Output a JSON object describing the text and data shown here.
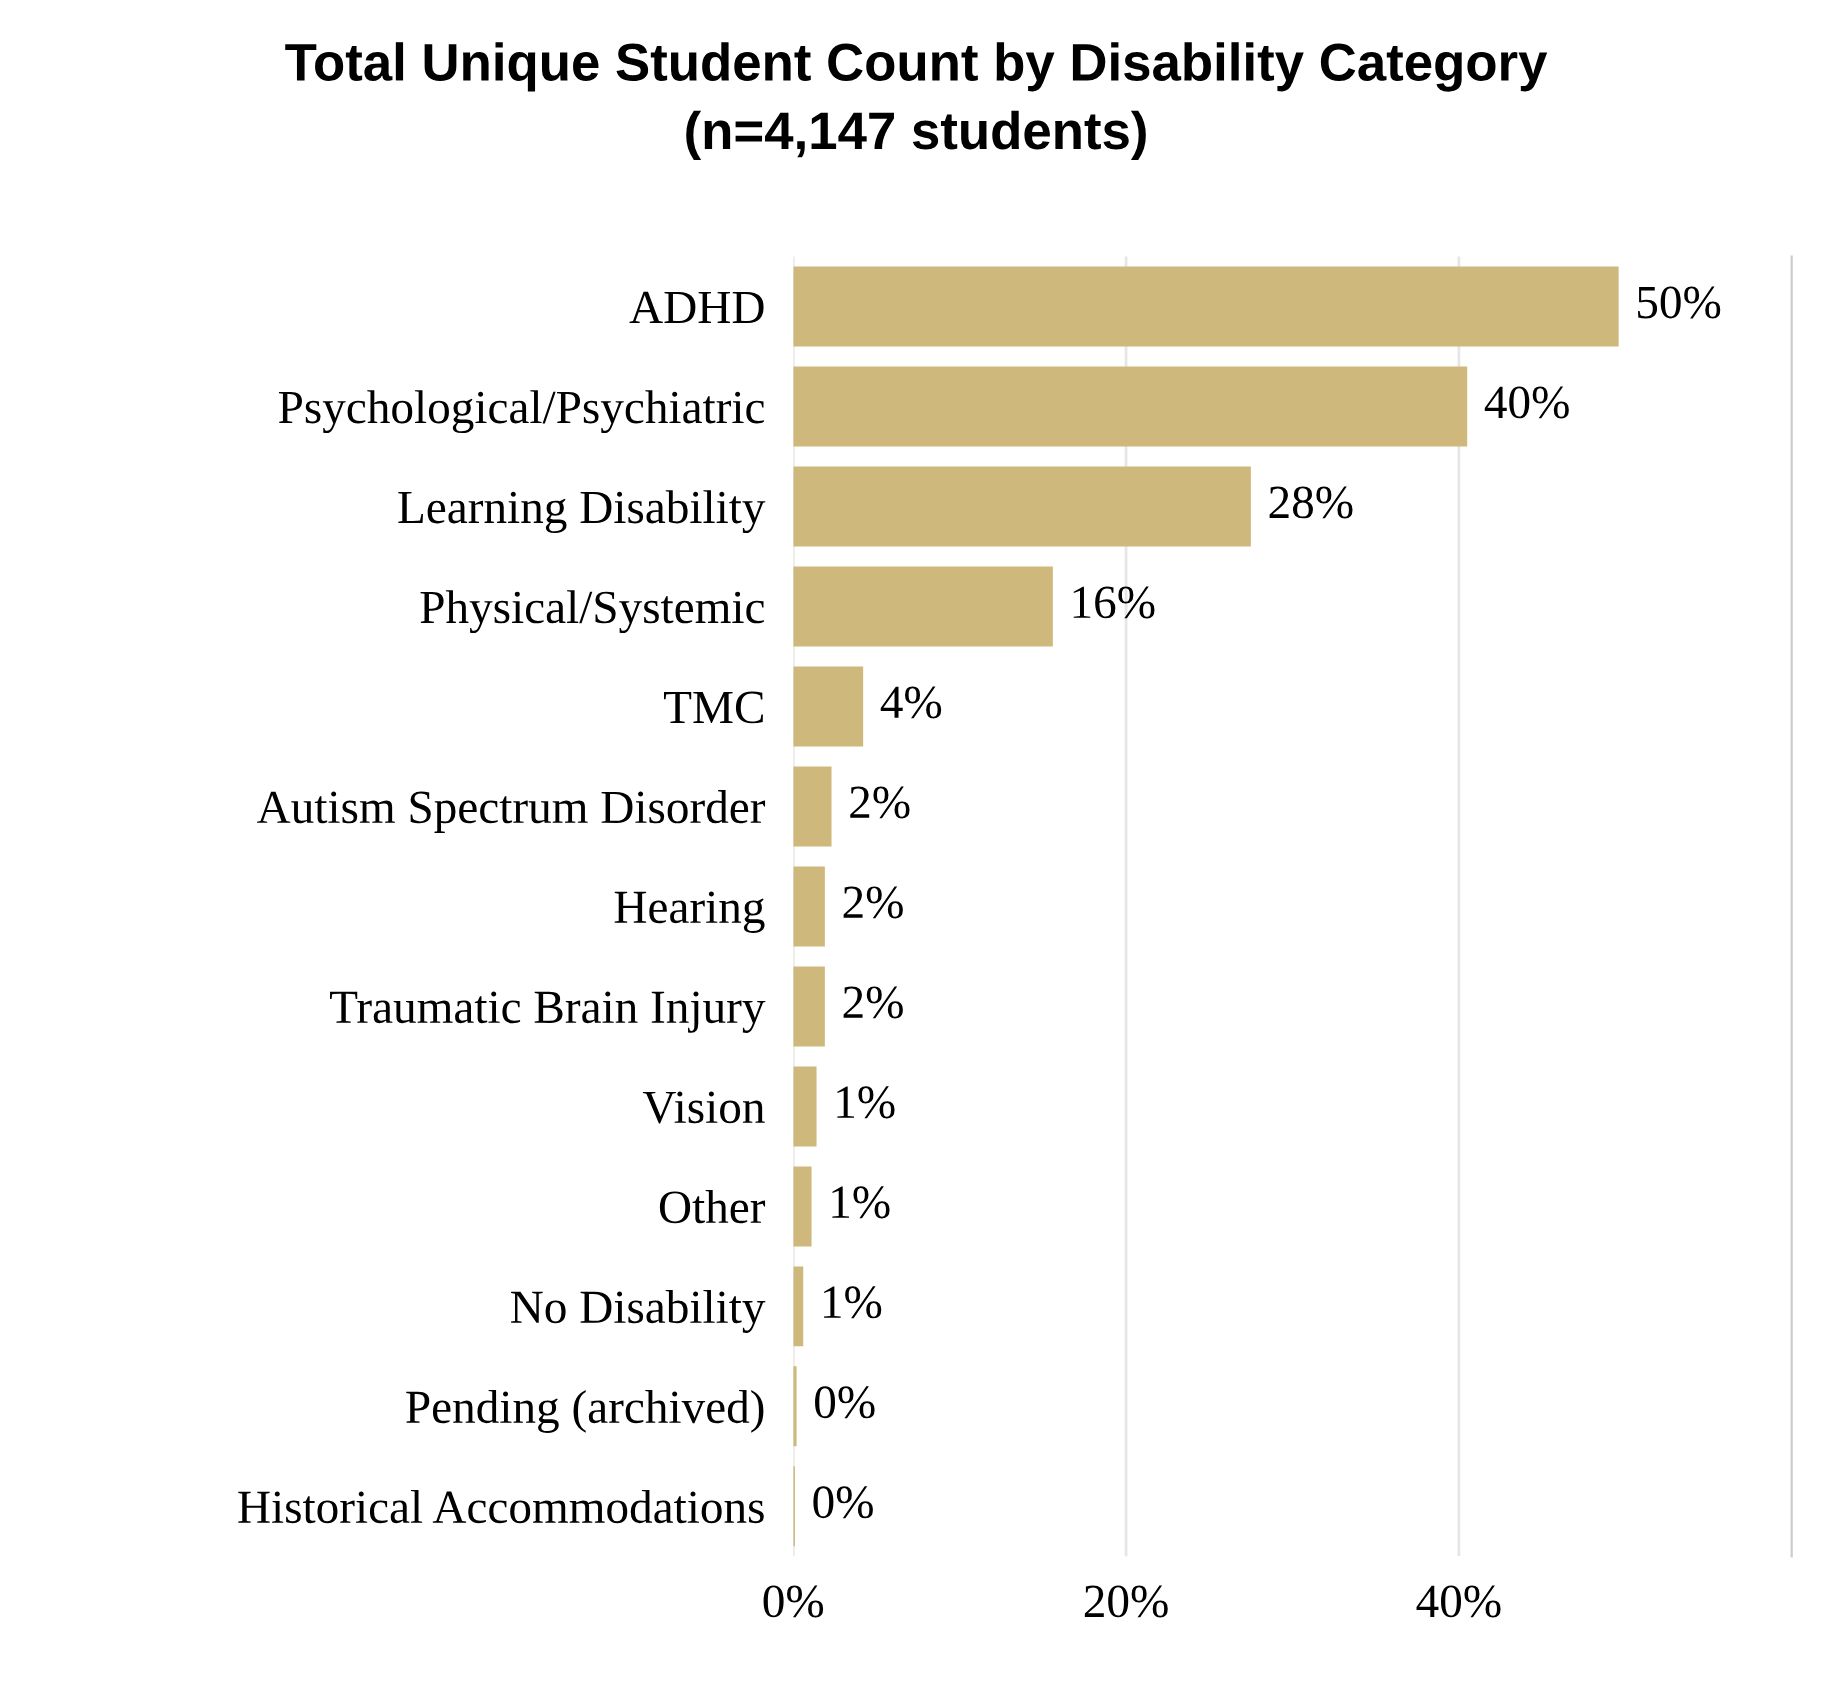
{
  "chart_data": {
    "type": "bar",
    "orientation": "horizontal",
    "title": "Total Unique Student Count by Disability Category\n(n=4,147 students)",
    "categories": [
      "ADHD",
      "Psychological/Psychiatric",
      "Learning Disability",
      "Physical/Systemic",
      "TMC",
      "Autism Spectrum Disorder",
      "Hearing",
      "Traumatic Brain Injury",
      "Vision",
      "Other",
      "No Disability",
      "Pending (archived)",
      "Historical Accommodations"
    ],
    "values": [
      49.6,
      40.5,
      27.5,
      15.6,
      4.2,
      2.3,
      1.9,
      1.9,
      1.4,
      1.1,
      0.6,
      0.2,
      0.1
    ],
    "value_labels": [
      "50%",
      "40%",
      "28%",
      "16%",
      "4%",
      "2%",
      "2%",
      "2%",
      "1%",
      "1%",
      "1%",
      "0%",
      "0%"
    ],
    "color": "#cfb87c",
    "xlim": [
      0,
      60
    ],
    "xticks": [
      {
        "value": 0,
        "label": "0%"
      },
      {
        "value": 20,
        "label": "20%"
      },
      {
        "value": 40,
        "label": "40%"
      }
    ],
    "grid": "x"
  }
}
